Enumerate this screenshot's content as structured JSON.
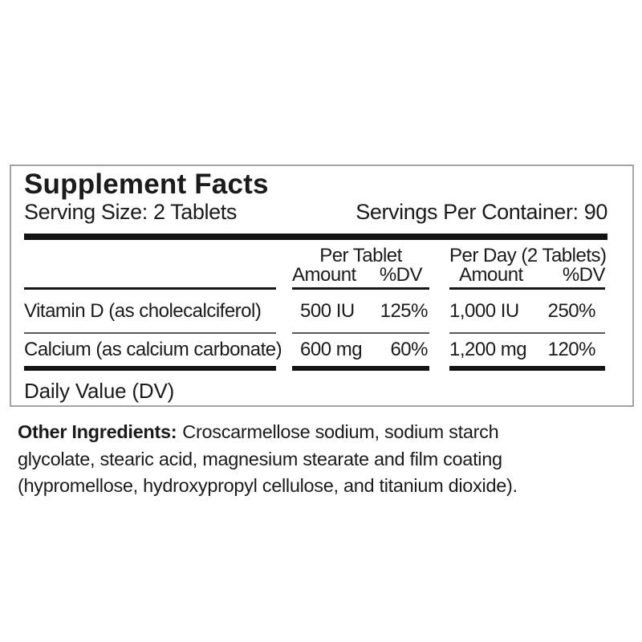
{
  "panel": {
    "title": "Supplement Facts",
    "serving_size": "Serving Size: 2 Tablets",
    "servings_per_container": "Servings Per Container: 90",
    "columns": {
      "per_tablet": {
        "group": "Per Tablet",
        "amount_label": "Amount",
        "dv_label": "%DV"
      },
      "per_day": {
        "group": "Per Day (2 Tablets)",
        "amount_label": "Amount",
        "dv_label": "%DV"
      }
    },
    "rows": [
      {
        "name": "Vitamin D (as cholecalciferol)",
        "per_tablet_amount": "500 IU",
        "per_tablet_dv": "125%",
        "per_day_amount": "1,000  IU",
        "per_day_dv": "250%"
      },
      {
        "name": "Calcium (as calcium carbonate)",
        "per_tablet_amount": "600 mg",
        "per_tablet_dv": "60%",
        "per_day_amount": "1,200 mg",
        "per_day_dv": "120%"
      }
    ],
    "footnote": "Daily Value (DV)"
  },
  "other_ingredients": {
    "heading": "Other Ingredients:",
    "lines": [
      "Croscarmellose sodium, sodium starch",
      "glycolate, stearic acid, magnesium stearate and film coating",
      "(hypromellose, hydroxypropyl cellulose, and titanium dioxide)."
    ]
  },
  "colors": {
    "text": "#1b1b1b",
    "heavy_rule": "#121212",
    "thin_rule": "#5a5a5a",
    "panel_border": "#a3a3a3",
    "background": "#ffffff"
  }
}
